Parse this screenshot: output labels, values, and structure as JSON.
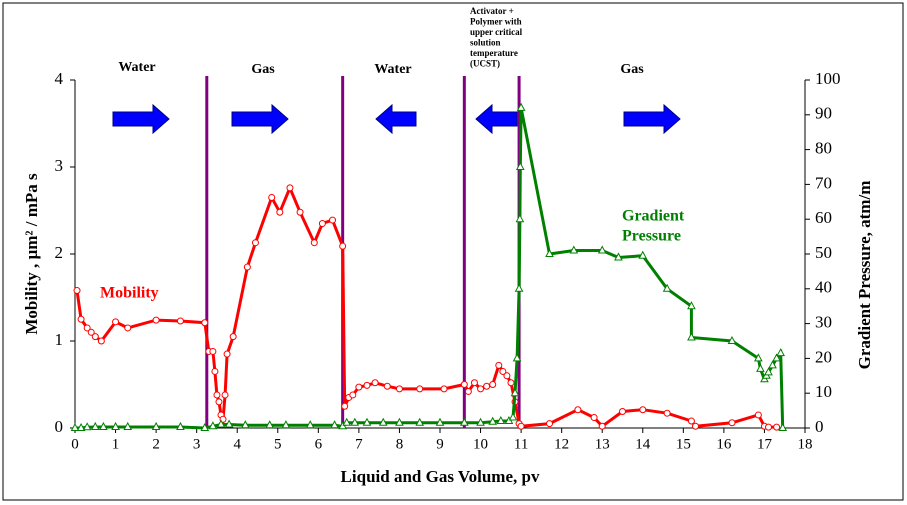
{
  "chart_data": {
    "type": "line",
    "xlabel": "Liquid and Gas Volume, pv",
    "ylabel": "Mobility , µm² / mPa s",
    "y2label": "Gradient Pressure, atm/m",
    "xlim": [
      0,
      18
    ],
    "xticks": [
      0,
      1,
      2,
      3,
      4,
      5,
      6,
      7,
      8,
      9,
      10,
      11,
      12,
      13,
      14,
      15,
      16,
      17,
      18
    ],
    "ylim": [
      0,
      4
    ],
    "yticks": [
      0,
      1,
      2,
      3,
      4
    ],
    "y2lim": [
      0,
      100
    ],
    "y2ticks": [
      0,
      10,
      20,
      30,
      40,
      50,
      60,
      70,
      80,
      90,
      100
    ],
    "phase_boundaries": [
      3.25,
      6.6,
      9.6,
      10.95
    ],
    "phase_labels": [
      "Water",
      "Gas",
      "Water",
      "Gas"
    ],
    "annotation": [
      "Activator +",
      "Polymer  with",
      "upper critical",
      "solution",
      "temperature",
      "(UCST)"
    ],
    "series": [
      {
        "name": "Mobility",
        "color": "#ff0000",
        "axis": "y",
        "x": [
          0.05,
          0.15,
          0.3,
          0.4,
          0.5,
          0.65,
          1.0,
          1.3,
          2.0,
          2.6,
          3.2,
          3.3,
          3.4,
          3.45,
          3.5,
          3.55,
          3.6,
          3.65,
          3.7,
          3.75,
          3.9,
          4.25,
          4.45,
          4.85,
          5.05,
          5.3,
          5.55,
          5.9,
          6.1,
          6.35,
          6.6,
          6.65,
          6.75,
          6.85,
          7.0,
          7.2,
          7.4,
          7.7,
          8.0,
          8.5,
          9.1,
          9.6,
          9.7,
          9.85,
          10.0,
          10.15,
          10.3,
          10.45,
          10.55,
          10.65,
          10.75,
          10.85,
          10.95,
          11.0,
          11.7,
          12.4,
          12.8,
          13.0,
          13.5,
          14.0,
          14.6,
          15.2,
          15.3,
          16.2,
          16.85,
          17.0,
          17.1,
          17.3
        ],
        "values": [
          1.58,
          1.25,
          1.15,
          1.1,
          1.05,
          1.0,
          1.22,
          1.15,
          1.24,
          1.23,
          1.21,
          0.88,
          0.88,
          0.65,
          0.38,
          0.3,
          0.15,
          0.1,
          0.38,
          0.85,
          1.05,
          1.85,
          2.13,
          2.65,
          2.48,
          2.76,
          2.48,
          2.13,
          2.35,
          2.39,
          2.09,
          0.25,
          0.35,
          0.38,
          0.47,
          0.49,
          0.52,
          0.48,
          0.45,
          0.45,
          0.45,
          0.5,
          0.42,
          0.52,
          0.45,
          0.48,
          0.5,
          0.72,
          0.65,
          0.6,
          0.52,
          0.3,
          0.05,
          0.02,
          0.05,
          0.21,
          0.12,
          0.02,
          0.19,
          0.21,
          0.17,
          0.08,
          0.02,
          0.06,
          0.15,
          0.02,
          0.01,
          0.01
        ]
      },
      {
        "name": "Gradient Pressure",
        "label": [
          "Gradient",
          "Pressure"
        ],
        "color": "#008000",
        "axis": "y2",
        "x": [
          0,
          0.15,
          0.3,
          0.5,
          0.7,
          1,
          1.3,
          2,
          2.6,
          3.2,
          3.4,
          3.6,
          3.8,
          4.2,
          4.8,
          5.2,
          5.8,
          6.4,
          6.6,
          6.7,
          6.9,
          7.2,
          7.6,
          8,
          8.5,
          9,
          9.6,
          10,
          10.3,
          10.5,
          10.7,
          10.8,
          10.85,
          10.9,
          10.95,
          10.97,
          10.98,
          11.0,
          11.7,
          12.3,
          13.0,
          13.4,
          14,
          14.6,
          15.2,
          15.2,
          16.2,
          16.85,
          16.9,
          17.0,
          17.05,
          17.1,
          17.2,
          17.3,
          17.4,
          17.45
        ],
        "values": [
          0,
          0,
          0.2,
          0.3,
          0.3,
          0.3,
          0.3,
          0.3,
          0.3,
          0,
          0.5,
          1,
          1,
          0.8,
          0.8,
          0.8,
          0.8,
          0.8,
          0.5,
          1.5,
          1.5,
          1.5,
          1.5,
          1.5,
          1.5,
          1.5,
          1.5,
          1.5,
          1.8,
          2,
          2,
          3,
          10,
          20,
          40,
          60,
          75,
          92,
          50,
          51,
          51,
          49,
          49.5,
          40,
          35,
          26,
          25,
          20,
          17,
          14,
          15,
          16,
          18,
          20,
          21.5,
          0
        ]
      }
    ]
  }
}
